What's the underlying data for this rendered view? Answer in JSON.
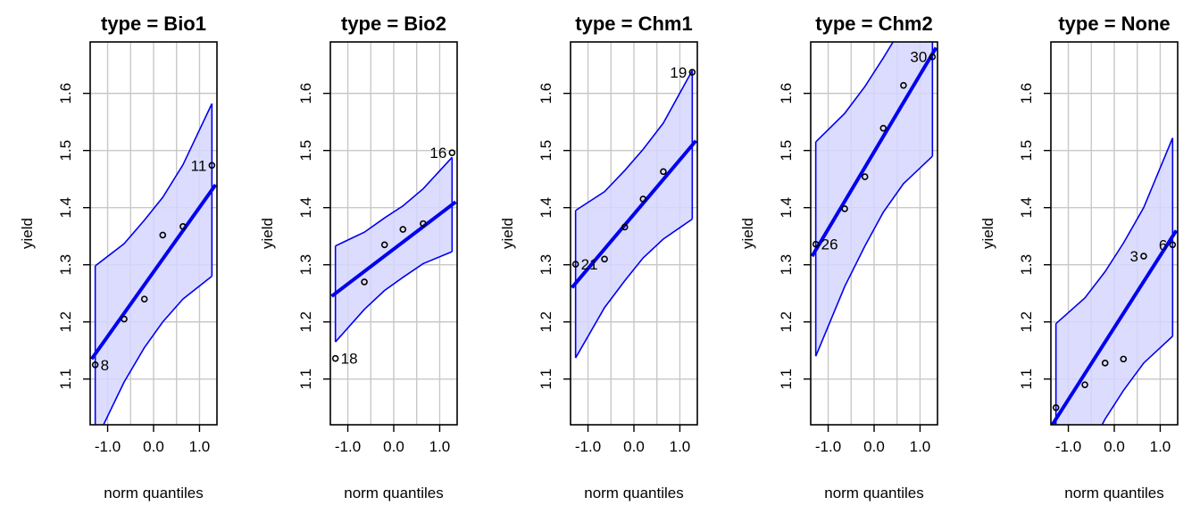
{
  "chart_data": [
    {
      "type": "scatter",
      "title": "type = Bio1",
      "xlabel": "norm quantiles",
      "ylabel": "yield",
      "x_ticks": [
        "-1.0",
        "0.0",
        "1.0"
      ],
      "y_ticks": [
        "1.1",
        "1.2",
        "1.3",
        "1.4",
        "1.5",
        "1.6"
      ],
      "points": [
        {
          "x": -1.27,
          "y": 1.125
        },
        {
          "x": -0.64,
          "y": 1.205
        },
        {
          "x": -0.2,
          "y": 1.24
        },
        {
          "x": 0.2,
          "y": 1.352
        },
        {
          "x": 0.64,
          "y": 1.367
        },
        {
          "x": 1.27,
          "y": 1.474
        }
      ],
      "labels": [
        {
          "text": "8",
          "x": -1.27,
          "y": 1.125
        },
        {
          "text": "11",
          "x": 1.27,
          "y": 1.474
        }
      ],
      "fit_line": [
        [
          -1.35,
          1.135
        ],
        [
          1.35,
          1.44
        ]
      ],
      "envelope_upper": [
        [
          -1.27,
          1.298
        ],
        [
          -0.64,
          1.337
        ],
        [
          -0.2,
          1.378
        ],
        [
          0.2,
          1.418
        ],
        [
          0.64,
          1.475
        ],
        [
          1.27,
          1.582
        ]
      ],
      "envelope_lower": [
        [
          -1.27,
          0.99
        ],
        [
          -0.64,
          1.095
        ],
        [
          -0.2,
          1.155
        ],
        [
          0.2,
          1.2
        ],
        [
          0.64,
          1.24
        ],
        [
          1.27,
          1.28
        ]
      ]
    },
    {
      "type": "scatter",
      "title": "type = Bio2",
      "xlabel": "norm quantiles",
      "ylabel": "yield",
      "x_ticks": [
        "-1.0",
        "0.0",
        "1.0"
      ],
      "y_ticks": [
        "1.1",
        "1.2",
        "1.3",
        "1.4",
        "1.5",
        "1.6"
      ],
      "points": [
        {
          "x": -1.27,
          "y": 1.136
        },
        {
          "x": -0.64,
          "y": 1.27
        },
        {
          "x": -0.2,
          "y": 1.335
        },
        {
          "x": 0.2,
          "y": 1.362
        },
        {
          "x": 0.64,
          "y": 1.372
        },
        {
          "x": 1.27,
          "y": 1.496
        }
      ],
      "labels": [
        {
          "text": "18",
          "x": -1.27,
          "y": 1.136
        },
        {
          "text": "16",
          "x": 1.27,
          "y": 1.496
        }
      ],
      "fit_line": [
        [
          -1.35,
          1.245
        ],
        [
          1.35,
          1.41
        ]
      ],
      "envelope_upper": [
        [
          -1.27,
          1.333
        ],
        [
          -0.64,
          1.357
        ],
        [
          -0.2,
          1.382
        ],
        [
          0.2,
          1.403
        ],
        [
          0.64,
          1.433
        ],
        [
          1.27,
          1.488
        ]
      ],
      "envelope_lower": [
        [
          -1.27,
          1.165
        ],
        [
          -0.64,
          1.222
        ],
        [
          -0.2,
          1.255
        ],
        [
          0.2,
          1.278
        ],
        [
          0.64,
          1.302
        ],
        [
          1.27,
          1.323
        ]
      ]
    },
    {
      "type": "scatter",
      "title": "type = Chm1",
      "xlabel": "norm quantiles",
      "ylabel": "yield",
      "x_ticks": [
        "-1.0",
        "0.0",
        "1.0"
      ],
      "y_ticks": [
        "1.1",
        "1.2",
        "1.3",
        "1.4",
        "1.5",
        "1.6"
      ],
      "points": [
        {
          "x": -1.27,
          "y": 1.301
        },
        {
          "x": -0.64,
          "y": 1.31
        },
        {
          "x": -0.2,
          "y": 1.366
        },
        {
          "x": 0.2,
          "y": 1.415
        },
        {
          "x": 0.64,
          "y": 1.463
        },
        {
          "x": 1.27,
          "y": 1.637
        }
      ],
      "labels": [
        {
          "text": "21",
          "x": -1.27,
          "y": 1.301
        },
        {
          "text": "19",
          "x": 1.27,
          "y": 1.637
        }
      ],
      "fit_line": [
        [
          -1.35,
          1.26
        ],
        [
          1.35,
          1.517
        ]
      ],
      "envelope_upper": [
        [
          -1.27,
          1.395
        ],
        [
          -0.64,
          1.428
        ],
        [
          -0.2,
          1.465
        ],
        [
          0.2,
          1.502
        ],
        [
          0.64,
          1.548
        ],
        [
          1.27,
          1.64
        ]
      ],
      "envelope_lower": [
        [
          -1.27,
          1.137
        ],
        [
          -0.64,
          1.225
        ],
        [
          -0.2,
          1.272
        ],
        [
          0.2,
          1.312
        ],
        [
          0.64,
          1.345
        ],
        [
          1.27,
          1.38
        ]
      ]
    },
    {
      "type": "scatter",
      "title": "type = Chm2",
      "xlabel": "norm quantiles",
      "ylabel": "yield",
      "x_ticks": [
        "-1.0",
        "0.0",
        "1.0"
      ],
      "y_ticks": [
        "1.1",
        "1.2",
        "1.3",
        "1.4",
        "1.5",
        "1.6"
      ],
      "points": [
        {
          "x": -1.27,
          "y": 1.336
        },
        {
          "x": -0.64,
          "y": 1.398
        },
        {
          "x": -0.2,
          "y": 1.454
        },
        {
          "x": 0.2,
          "y": 1.539
        },
        {
          "x": 0.64,
          "y": 1.614
        },
        {
          "x": 1.27,
          "y": 1.664
        }
      ],
      "labels": [
        {
          "text": "26",
          "x": -1.27,
          "y": 1.336
        },
        {
          "text": "30",
          "x": 1.27,
          "y": 1.664
        }
      ],
      "fit_line": [
        [
          -1.35,
          1.315
        ],
        [
          1.35,
          1.68
        ]
      ],
      "envelope_upper": [
        [
          -1.27,
          1.515
        ],
        [
          -0.64,
          1.565
        ],
        [
          -0.2,
          1.612
        ],
        [
          0.2,
          1.662
        ],
        [
          0.64,
          1.72
        ],
        [
          1.27,
          1.84
        ]
      ],
      "envelope_lower": [
        [
          -1.27,
          1.14
        ],
        [
          -0.64,
          1.262
        ],
        [
          -0.2,
          1.333
        ],
        [
          0.2,
          1.392
        ],
        [
          0.64,
          1.442
        ],
        [
          1.27,
          1.49
        ]
      ]
    },
    {
      "type": "scatter",
      "title": "type = None",
      "xlabel": "norm quantiles",
      "ylabel": "yield",
      "x_ticks": [
        "-1.0",
        "0.0",
        "1.0"
      ],
      "y_ticks": [
        "1.1",
        "1.2",
        "1.3",
        "1.4",
        "1.5",
        "1.6"
      ],
      "points": [
        {
          "x": -1.27,
          "y": 1.05
        },
        {
          "x": -0.64,
          "y": 1.09
        },
        {
          "x": -0.2,
          "y": 1.128
        },
        {
          "x": 0.2,
          "y": 1.135
        },
        {
          "x": 0.64,
          "y": 1.315
        },
        {
          "x": 1.27,
          "y": 1.335
        }
      ],
      "labels": [
        {
          "text": "3",
          "x": 0.64,
          "y": 1.315
        },
        {
          "text": "6",
          "x": 1.27,
          "y": 1.335
        }
      ],
      "fit_line": [
        [
          -1.35,
          1.02
        ],
        [
          1.35,
          1.36
        ]
      ],
      "envelope_upper": [
        [
          -1.27,
          1.197
        ],
        [
          -0.64,
          1.242
        ],
        [
          -0.2,
          1.288
        ],
        [
          0.2,
          1.338
        ],
        [
          0.64,
          1.4
        ],
        [
          1.27,
          1.522
        ]
      ],
      "envelope_lower": [
        [
          -1.27,
          0.86
        ],
        [
          -0.64,
          0.962
        ],
        [
          -0.2,
          1.03
        ],
        [
          0.2,
          1.08
        ],
        [
          0.64,
          1.128
        ],
        [
          1.27,
          1.175
        ]
      ]
    }
  ],
  "colors": {
    "line": "#0000ee",
    "band_fill": "#d6d6ff",
    "grid": "#c8c8c8",
    "points": "#000000"
  }
}
